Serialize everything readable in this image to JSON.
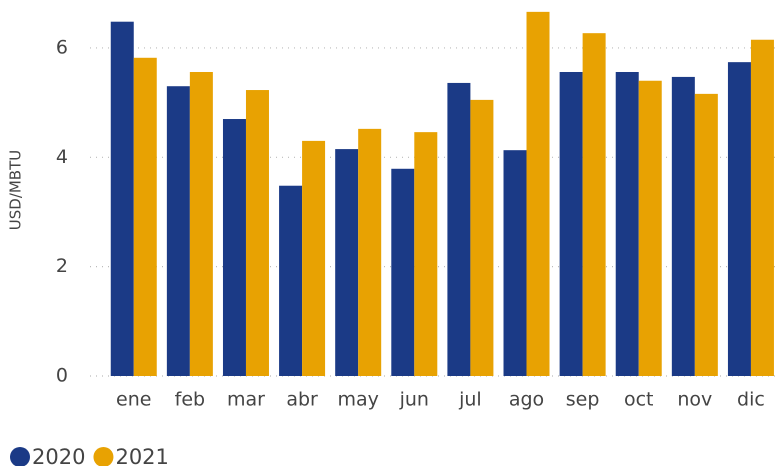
{
  "chart_data": {
    "type": "bar",
    "y_label": "USD/MBTU",
    "categories": [
      "ene",
      "feb",
      "mar",
      "abr",
      "may",
      "jun",
      "jul",
      "ago",
      "sep",
      "oct",
      "nov",
      "dic"
    ],
    "series": [
      {
        "name": "2020",
        "color": "#1b3a86",
        "values": [
          6.48,
          5.3,
          4.7,
          3.48,
          4.15,
          3.79,
          5.36,
          4.13,
          5.56,
          5.56,
          5.47,
          5.74
        ]
      },
      {
        "name": "2021",
        "color": "#e8a202",
        "values": [
          5.82,
          5.56,
          5.23,
          4.3,
          4.52,
          4.46,
          5.05,
          6.66,
          6.27,
          5.4,
          5.16,
          6.15
        ]
      }
    ],
    "ylim": [
      0,
      6.8
    ],
    "yticks": [
      0,
      2,
      4,
      6
    ],
    "grid": true
  }
}
